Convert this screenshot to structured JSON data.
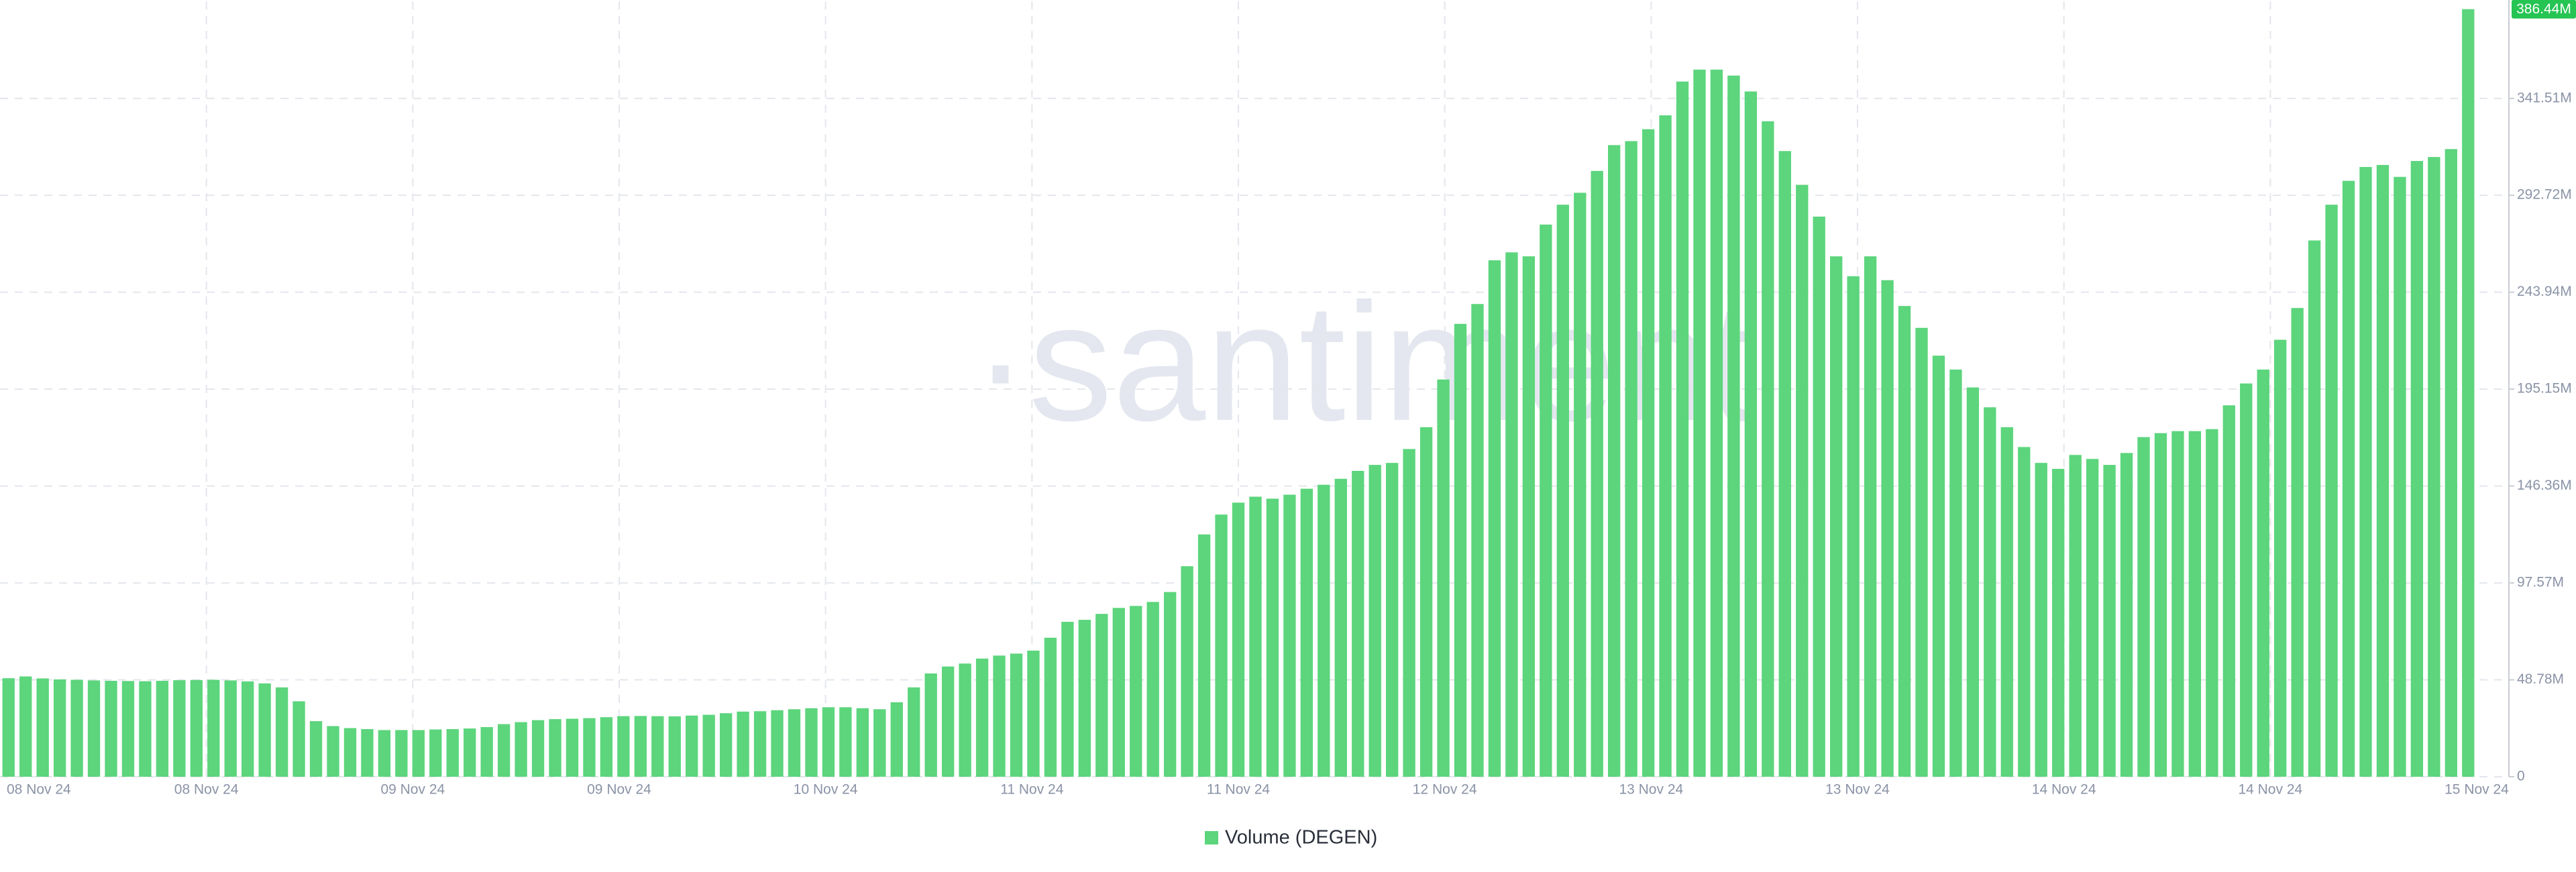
{
  "chart_data": {
    "type": "bar",
    "watermark": "·santiment",
    "series": [
      {
        "name": "Volume (DEGEN)",
        "color": "#5cd57c",
        "values": [
          49.6,
          50.5,
          49.5,
          49,
          48.8,
          48.5,
          48.3,
          48.2,
          48.1,
          48.3,
          48.6,
          48.7,
          48.8,
          48.5,
          48,
          47,
          45,
          38,
          28,
          25.5,
          24.5,
          24,
          23.5,
          23.5,
          23.5,
          23.8,
          24,
          24.3,
          25,
          26.5,
          27.5,
          28.5,
          29,
          29.2,
          29.5,
          30,
          30.5,
          30.6,
          30.5,
          30.4,
          30.8,
          31.2,
          32,
          32.8,
          33,
          33.5,
          34,
          34.5,
          35,
          35,
          34.5,
          34,
          37.5,
          45,
          52,
          55.5,
          57,
          59.5,
          61,
          62,
          63.5,
          70,
          78,
          79,
          82,
          85,
          86,
          88,
          93,
          106,
          122,
          132,
          138,
          141,
          140,
          142,
          145,
          147,
          150,
          154,
          157,
          158,
          165,
          176,
          200,
          228,
          238,
          260,
          264,
          262,
          278,
          288,
          294,
          305,
          318,
          320,
          326,
          333,
          350,
          356,
          356,
          353,
          345,
          330,
          315,
          298,
          282,
          262,
          252,
          262,
          250,
          237,
          226,
          212,
          205,
          196,
          186,
          176,
          166,
          158,
          155,
          162,
          160,
          157,
          163,
          171,
          173,
          174,
          174,
          175,
          187,
          198,
          205,
          220,
          236,
          270,
          288,
          300,
          307,
          308,
          302,
          310,
          312,
          316,
          386.44
        ],
        "last_value_label": "386.44M"
      }
    ],
    "x_tick_labels": [
      "08 Nov 24",
      "08 Nov 24",
      "09 Nov 24",
      "09 Nov 24",
      "10 Nov 24",
      "11 Nov 24",
      "11 Nov 24",
      "12 Nov 24",
      "13 Nov 24",
      "13 Nov 24",
      "14 Nov 24",
      "14 Nov 24",
      "15 Nov 24"
    ],
    "ylim": [
      0,
      387
    ],
    "yticks": [
      0,
      {
        "value": 48.78,
        "label": "48.78M"
      },
      {
        "value": 97.57,
        "label": "97.57M"
      },
      {
        "value": 146.36,
        "label": "146.36M"
      },
      {
        "value": 195.15,
        "label": "195.15M"
      },
      {
        "value": 243.94,
        "label": "243.94M"
      },
      {
        "value": 292.72,
        "label": "292.72M"
      },
      {
        "value": 341.51,
        "label": "341.51M"
      }
    ],
    "grid": true
  }
}
